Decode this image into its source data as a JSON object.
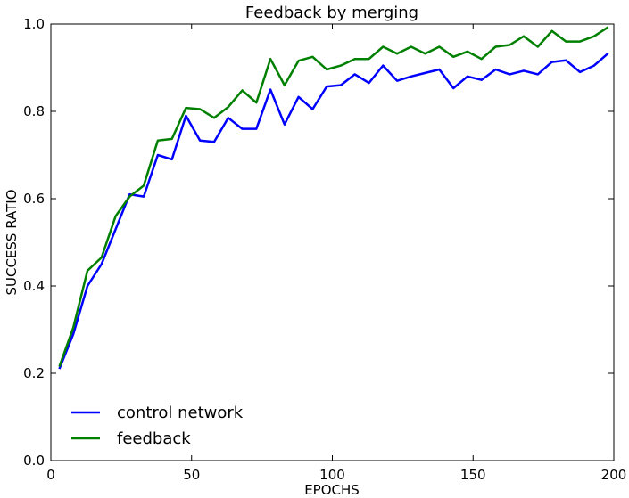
{
  "chart_data": {
    "type": "line",
    "title": "Feedback by merging",
    "xlabel": "EPOCHS",
    "ylabel": "SUCCESS RATIO",
    "xlim": [
      0,
      200
    ],
    "ylim": [
      0.0,
      1.0
    ],
    "x_ticks": [
      0,
      50,
      100,
      150,
      200
    ],
    "y_ticks": [
      0.0,
      0.2,
      0.4,
      0.6,
      0.8,
      1.0
    ],
    "x_tick_labels": [
      "0",
      "50",
      "100",
      "150",
      "200"
    ],
    "y_tick_labels": [
      "0.0",
      "0.2",
      "0.4",
      "0.6",
      "0.8",
      "1.0"
    ],
    "grid": false,
    "legend_position": "bottom-left",
    "x": [
      3,
      8,
      13,
      18,
      23,
      28,
      33,
      38,
      43,
      48,
      53,
      58,
      63,
      68,
      73,
      78,
      83,
      88,
      93,
      98,
      103,
      108,
      113,
      118,
      123,
      128,
      133,
      138,
      143,
      148,
      153,
      158,
      163,
      168,
      173,
      178,
      183,
      188,
      193,
      198
    ],
    "series": [
      {
        "name": "control network",
        "color": "#0000ff",
        "values": [
          0.21,
          0.29,
          0.4,
          0.45,
          0.53,
          0.61,
          0.605,
          0.7,
          0.69,
          0.79,
          0.733,
          0.73,
          0.785,
          0.76,
          0.76,
          0.85,
          0.77,
          0.833,
          0.805,
          0.857,
          0.86,
          0.885,
          0.865,
          0.905,
          0.87,
          0.88,
          0.888,
          0.896,
          0.853,
          0.88,
          0.872,
          0.896,
          0.885,
          0.893,
          0.885,
          0.913,
          0.917,
          0.89,
          0.905,
          0.933
        ]
      },
      {
        "name": "feedback",
        "color": "#008000",
        "values": [
          0.215,
          0.305,
          0.435,
          0.465,
          0.56,
          0.605,
          0.63,
          0.733,
          0.737,
          0.808,
          0.805,
          0.785,
          0.81,
          0.848,
          0.82,
          0.92,
          0.86,
          0.916,
          0.925,
          0.896,
          0.905,
          0.92,
          0.92,
          0.948,
          0.932,
          0.948,
          0.932,
          0.948,
          0.925,
          0.937,
          0.92,
          0.948,
          0.952,
          0.972,
          0.948,
          0.984,
          0.96,
          0.96,
          0.972,
          0.993
        ]
      }
    ]
  }
}
